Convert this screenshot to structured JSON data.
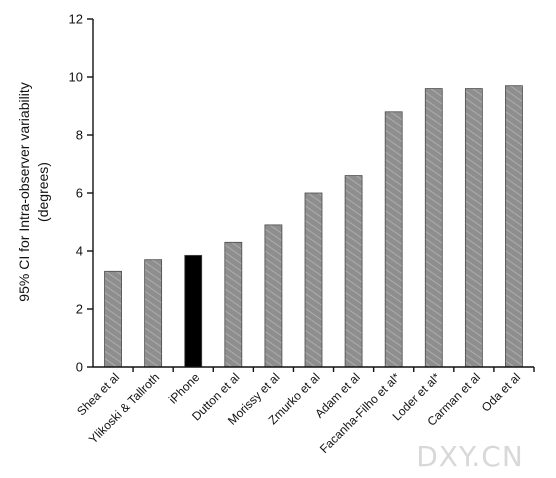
{
  "chart_data": {
    "type": "bar",
    "title": "",
    "xlabel": "",
    "ylabel_line1": "95% CI for Intra-observer variability",
    "ylabel_line2": "(degrees)",
    "ylim": [
      0,
      12
    ],
    "yticks": [
      "0",
      "2",
      "4",
      "6",
      "8",
      "10",
      "12"
    ],
    "categories": [
      "Shea et al",
      "Ylikoski & Tallroth",
      "iPhone",
      "Dutton et al",
      "Morissy et al",
      "Zmurko et al",
      "Adam et al",
      "Facanha-Filho et al*",
      "Loder et al*",
      "Carman et al",
      "Oda et al"
    ],
    "values": [
      3.3,
      3.7,
      3.85,
      4.3,
      4.9,
      6.0,
      6.6,
      8.8,
      9.6,
      9.6,
      9.7
    ],
    "bar_colors": [
      "#8c8c8c",
      "#8c8c8c",
      "#000000",
      "#8c8c8c",
      "#8c8c8c",
      "#8c8c8c",
      "#8c8c8c",
      "#8c8c8c",
      "#8c8c8c",
      "#8c8c8c",
      "#8c8c8c"
    ],
    "highlight_category": "iPhone",
    "grid": false
  },
  "watermark": "DXY.CN"
}
